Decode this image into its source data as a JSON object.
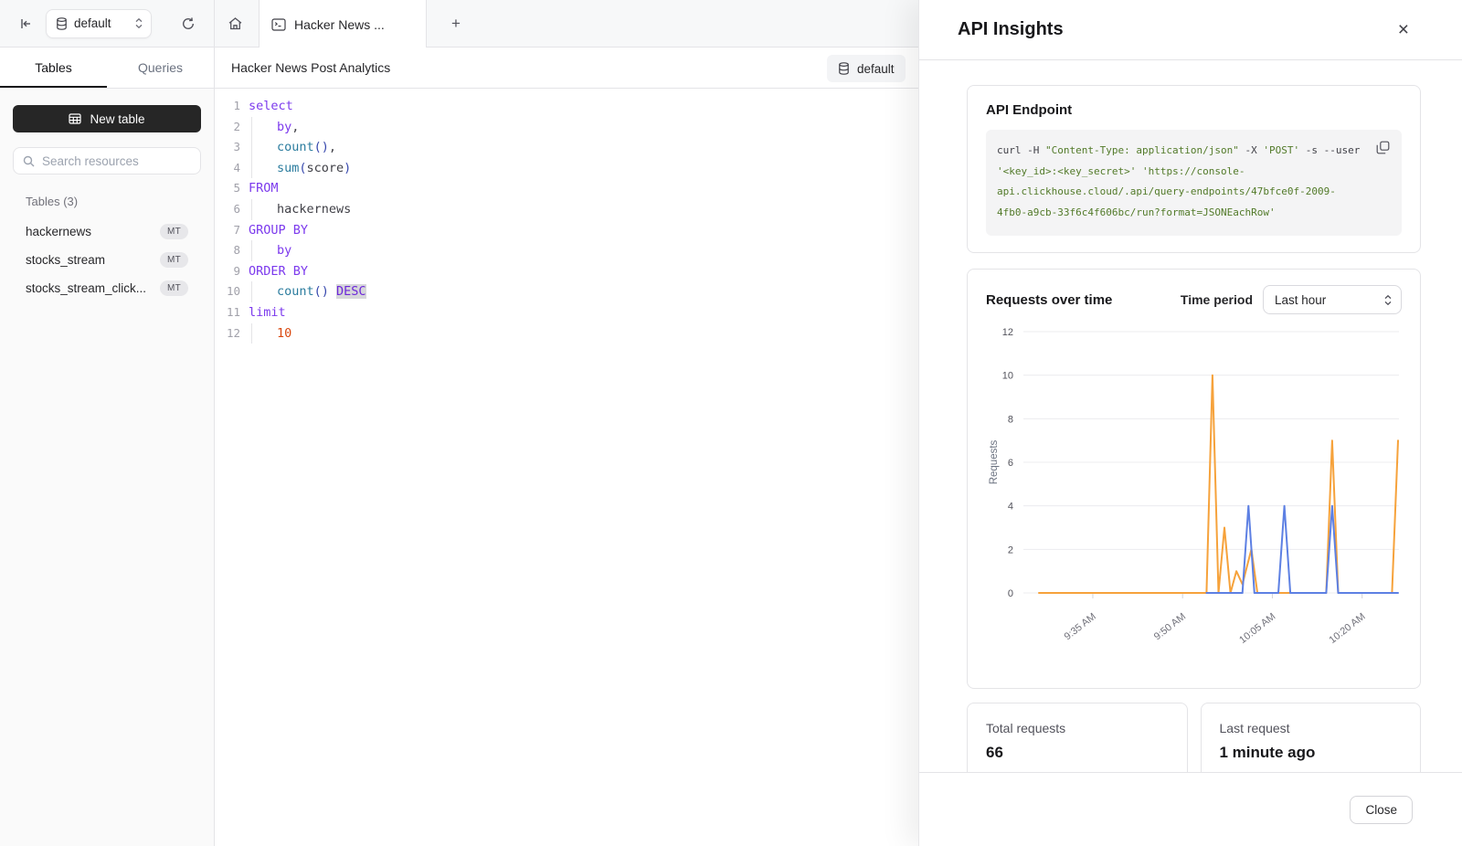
{
  "icons": {
    "close_glyph": "×",
    "plus_glyph": "+"
  },
  "sidebar": {
    "db_selector": {
      "value": "default"
    },
    "tabs": [
      {
        "label": "Tables"
      },
      {
        "label": "Queries"
      }
    ],
    "new_table_label": "New table",
    "search_placeholder": "Search resources",
    "section_label": "Tables (3)",
    "tables": [
      {
        "name": "hackernews",
        "badge": "MT"
      },
      {
        "name": "stocks_stream",
        "badge": "MT"
      },
      {
        "name": "stocks_stream_click...",
        "badge": "MT"
      }
    ]
  },
  "main": {
    "tab_title": "Hacker News ...",
    "query_title": "Hacker News Post Analytics",
    "db_chip": "default",
    "editor": {
      "lines": [
        {
          "num": "1",
          "indent": false,
          "segments": [
            {
              "t": "select",
              "c": "kw"
            }
          ]
        },
        {
          "num": "2",
          "indent": true,
          "segments": [
            {
              "t": "by",
              "c": "kw"
            },
            {
              "t": ",",
              "c": "plain"
            }
          ]
        },
        {
          "num": "3",
          "indent": true,
          "segments": [
            {
              "t": "count",
              "c": "fn"
            },
            {
              "t": "()",
              "c": "paren"
            },
            {
              "t": ",",
              "c": "plain"
            }
          ]
        },
        {
          "num": "4",
          "indent": true,
          "segments": [
            {
              "t": "sum",
              "c": "fn"
            },
            {
              "t": "(",
              "c": "paren"
            },
            {
              "t": "score",
              "c": "plain"
            },
            {
              "t": ")",
              "c": "paren"
            }
          ]
        },
        {
          "num": "5",
          "indent": false,
          "segments": [
            {
              "t": "FROM",
              "c": "kw"
            }
          ]
        },
        {
          "num": "6",
          "indent": true,
          "segments": [
            {
              "t": "hackernews",
              "c": "plain"
            }
          ]
        },
        {
          "num": "7",
          "indent": false,
          "segments": [
            {
              "t": "GROUP BY",
              "c": "kw"
            }
          ]
        },
        {
          "num": "8",
          "indent": true,
          "segments": [
            {
              "t": "by",
              "c": "kw"
            }
          ]
        },
        {
          "num": "9",
          "indent": false,
          "segments": [
            {
              "t": "ORDER BY",
              "c": "kw"
            }
          ]
        },
        {
          "num": "10",
          "indent": true,
          "segments": [
            {
              "t": "count",
              "c": "fn"
            },
            {
              "t": "()",
              "c": "paren"
            },
            {
              "t": " ",
              "c": "plain"
            },
            {
              "t": "DESC",
              "c": "kwhl"
            }
          ]
        },
        {
          "num": "11",
          "indent": false,
          "segments": [
            {
              "t": "limit",
              "c": "kw"
            }
          ]
        },
        {
          "num": "12",
          "indent": true,
          "segments": [
            {
              "t": "10",
              "c": "num"
            }
          ]
        }
      ]
    }
  },
  "panel": {
    "title": "API Insights",
    "endpoint": {
      "title": "API Endpoint",
      "code_segments": [
        {
          "t": "curl -H ",
          "c": "plain"
        },
        {
          "t": "\"Content-Type: application/json\"",
          "c": "string"
        },
        {
          "t": " -X ",
          "c": "plain"
        },
        {
          "t": "'POST'",
          "c": "string"
        },
        {
          "t": " -s --user ",
          "c": "plain"
        },
        {
          "t": "'<key_id>:<key_secret>'",
          "c": "string"
        },
        {
          "t": " ",
          "c": "plain"
        },
        {
          "t": "'https://console-api.clickhouse.cloud/.api/query-endpoints/47bfce0f-2009-4fb0-a9cb-33f6c4f606bc/run?format=JSONEachRow'",
          "c": "string"
        }
      ]
    },
    "chart_card": {
      "title": "Requests over time",
      "time_period_label": "Time period",
      "time_period_value": "Last hour"
    },
    "stats": [
      {
        "label": "Total requests",
        "value": "66"
      },
      {
        "label": "Last request",
        "value": "1 minute ago"
      }
    ],
    "close_label": "Close"
  },
  "chart_data": {
    "type": "line",
    "title": "Requests over time",
    "ylabel": "Requests",
    "ylim": [
      0,
      12
    ],
    "yticks": [
      0,
      2,
      4,
      6,
      8,
      10,
      12
    ],
    "x_unit": "minutes, 0 = 9:26 AM, 60 = 10:26 AM",
    "xticks": [
      {
        "t": 9,
        "label": "9:35 AM"
      },
      {
        "t": 24,
        "label": "9:50 AM"
      },
      {
        "t": 39,
        "label": "10:05 AM"
      },
      {
        "t": 54,
        "label": "10:20 AM"
      }
    ],
    "grid": true,
    "legend": false,
    "series": [
      {
        "name": "orange",
        "color": "#f6a23b",
        "points": [
          [
            0,
            0
          ],
          [
            28,
            0
          ],
          [
            29,
            10
          ],
          [
            30,
            0
          ],
          [
            31,
            3
          ],
          [
            32,
            0
          ],
          [
            33,
            1
          ],
          [
            34,
            0.4
          ],
          [
            35.5,
            2
          ],
          [
            36.5,
            0
          ],
          [
            48,
            0
          ],
          [
            49,
            7
          ],
          [
            50,
            0
          ],
          [
            59,
            0
          ],
          [
            60,
            7
          ]
        ]
      },
      {
        "name": "blue",
        "color": "#5d80e3",
        "points": [
          [
            28,
            0
          ],
          [
            34,
            0
          ],
          [
            35,
            4
          ],
          [
            36,
            0
          ],
          [
            40,
            0
          ],
          [
            41,
            4
          ],
          [
            42,
            0
          ],
          [
            48,
            0
          ],
          [
            49,
            4
          ],
          [
            50,
            0
          ],
          [
            60,
            0
          ]
        ]
      }
    ]
  }
}
